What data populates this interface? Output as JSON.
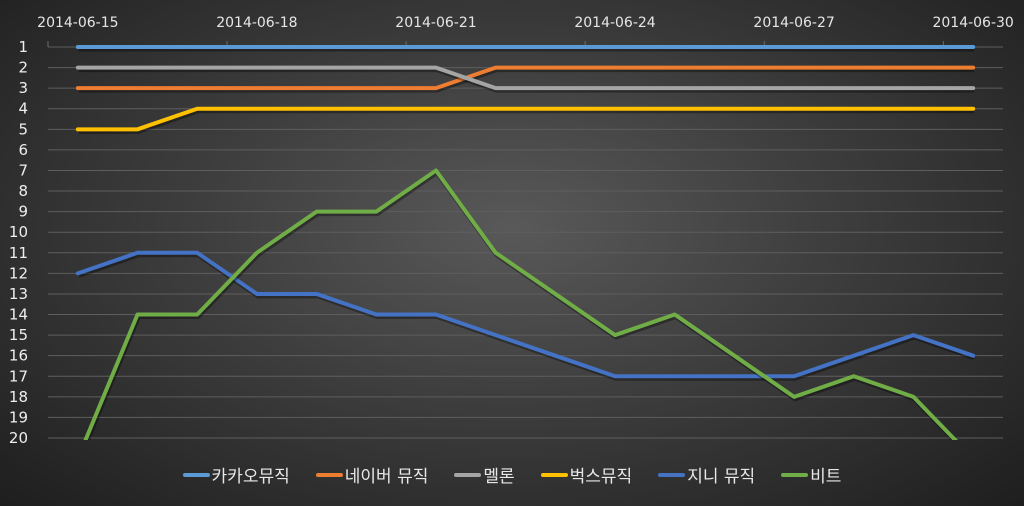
{
  "chart_data": {
    "type": "line",
    "title": "",
    "xlabel": "",
    "ylabel": "",
    "x": [
      "2014-06-15",
      "2014-06-16",
      "2014-06-17",
      "2014-06-18",
      "2014-06-19",
      "2014-06-20",
      "2014-06-21",
      "2014-06-22",
      "2014-06-23",
      "2014-06-24",
      "2014-06-25",
      "2014-06-26",
      "2014-06-27",
      "2014-06-28",
      "2014-06-29",
      "2014-06-30"
    ],
    "x_tick_labels": [
      "2014-06-15",
      "2014-06-18",
      "2014-06-21",
      "2014-06-24",
      "2014-06-27",
      "2014-06-30"
    ],
    "y_tick_labels": [
      "1",
      "2",
      "3",
      "4",
      "5",
      "6",
      "7",
      "8",
      "9",
      "10",
      "11",
      "12",
      "13",
      "14",
      "15",
      "16",
      "17",
      "18",
      "19",
      "20"
    ],
    "ylim": [
      1,
      20
    ],
    "y_reversed": true,
    "x_axis_position": "top",
    "grid": true,
    "legend_position": "bottom",
    "series": [
      {
        "name": "카카오뮤직",
        "color": "#5b9bd5",
        "values": [
          1,
          1,
          1,
          1,
          1,
          1,
          1,
          1,
          1,
          1,
          1,
          1,
          1,
          1,
          1,
          1
        ]
      },
      {
        "name": "네이버 뮤직",
        "color": "#ed7d31",
        "values": [
          3,
          3,
          3,
          3,
          3,
          3,
          3,
          2,
          2,
          2,
          2,
          2,
          2,
          2,
          2,
          2
        ]
      },
      {
        "name": "멜론",
        "color": "#a5a5a5",
        "values": [
          2,
          2,
          2,
          2,
          2,
          2,
          2,
          3,
          3,
          3,
          3,
          3,
          3,
          3,
          3,
          3
        ]
      },
      {
        "name": "벅스뮤직",
        "color": "#ffc000",
        "values": [
          5,
          5,
          4,
          4,
          4,
          4,
          4,
          4,
          4,
          4,
          4,
          4,
          4,
          4,
          4,
          4
        ]
      },
      {
        "name": "지니 뮤직",
        "color": "#4472c4",
        "values": [
          12,
          11,
          11,
          13,
          13,
          14,
          14,
          15,
          16,
          17,
          17,
          17,
          17,
          16,
          15,
          16
        ]
      },
      {
        "name": "비트",
        "color": "#70ad47",
        "values": [
          21,
          14,
          14,
          11,
          9,
          9,
          7,
          11,
          13,
          15,
          14,
          16,
          18,
          17,
          18,
          21
        ]
      }
    ]
  }
}
